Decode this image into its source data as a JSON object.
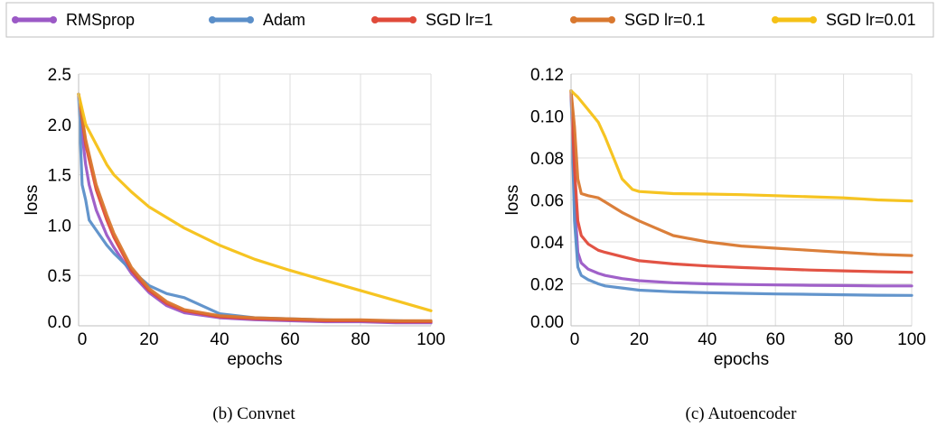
{
  "legend": [
    {
      "label": "RMSprop",
      "color": "#9b59c6"
    },
    {
      "label": "Adam",
      "color": "#5b8fc9"
    },
    {
      "label": "SGD lr=1",
      "color": "#e04a3a"
    },
    {
      "label": "SGD lr=0.1",
      "color": "#d9782f"
    },
    {
      "label": "SGD lr=0.01",
      "color": "#f5c116"
    }
  ],
  "chart_data": [
    {
      "type": "line",
      "caption": "(b) Convnet",
      "xlabel": "epochs",
      "ylabel": "loss",
      "xlim": [
        0,
        100
      ],
      "ylim": [
        0,
        2.5
      ],
      "xticks": [
        "0",
        "20",
        "40",
        "60",
        "80",
        "100"
      ],
      "yticks": [
        "0.0",
        "0.5",
        "1.0",
        "1.5",
        "2.0",
        "2.5"
      ],
      "grid": true,
      "series": [
        {
          "name": "RMSprop",
          "color": "#9b59c6",
          "x": [
            0,
            1,
            2,
            3,
            5,
            8,
            10,
            15,
            20,
            25,
            30,
            40,
            50,
            60,
            70,
            80,
            90,
            100
          ],
          "y": [
            2.3,
            1.9,
            1.6,
            1.4,
            1.15,
            0.9,
            0.78,
            0.52,
            0.33,
            0.2,
            0.13,
            0.08,
            0.06,
            0.05,
            0.04,
            0.04,
            0.03,
            0.03
          ]
        },
        {
          "name": "Adam",
          "color": "#5b8fc9",
          "x": [
            0,
            1,
            2,
            3,
            5,
            8,
            10,
            15,
            20,
            25,
            30,
            35,
            40,
            50,
            60,
            70,
            80,
            90,
            100
          ],
          "y": [
            2.3,
            1.4,
            1.25,
            1.05,
            0.95,
            0.8,
            0.72,
            0.55,
            0.4,
            0.32,
            0.28,
            0.2,
            0.12,
            0.08,
            0.07,
            0.06,
            0.05,
            0.05,
            0.04
          ]
        },
        {
          "name": "SGD lr=1",
          "color": "#e04a3a",
          "x": [
            0,
            2,
            5,
            8,
            10,
            15,
            20,
            25,
            30,
            40,
            50,
            60,
            70,
            80,
            90,
            100
          ],
          "y": [
            2.3,
            1.8,
            1.35,
            1.05,
            0.88,
            0.55,
            0.35,
            0.22,
            0.15,
            0.09,
            0.07,
            0.06,
            0.05,
            0.05,
            0.04,
            0.04
          ]
        },
        {
          "name": "SGD lr=0.1",
          "color": "#d9782f",
          "x": [
            0,
            2,
            5,
            8,
            10,
            15,
            20,
            25,
            30,
            40,
            50,
            60,
            70,
            80,
            90,
            100
          ],
          "y": [
            2.3,
            1.85,
            1.4,
            1.1,
            0.92,
            0.58,
            0.37,
            0.24,
            0.16,
            0.1,
            0.08,
            0.07,
            0.06,
            0.06,
            0.05,
            0.05
          ]
        },
        {
          "name": "SGD lr=0.01",
          "color": "#f5c116",
          "x": [
            0,
            2,
            5,
            8,
            10,
            15,
            20,
            30,
            40,
            50,
            60,
            70,
            80,
            90,
            100
          ],
          "y": [
            2.3,
            2.0,
            1.8,
            1.6,
            1.5,
            1.33,
            1.18,
            0.97,
            0.8,
            0.66,
            0.55,
            0.45,
            0.35,
            0.25,
            0.15
          ]
        }
      ]
    },
    {
      "type": "line",
      "caption": "(c) Autoencoder",
      "xlabel": "epochs",
      "ylabel": "loss",
      "xlim": [
        0,
        100
      ],
      "ylim": [
        0,
        0.12
      ],
      "xticks": [
        "0",
        "20",
        "40",
        "60",
        "80",
        "100"
      ],
      "yticks": [
        "0.00",
        "0.02",
        "0.04",
        "0.06",
        "0.08",
        "0.10",
        "0.12"
      ],
      "grid": true,
      "series": [
        {
          "name": "RMSprop",
          "color": "#9b59c6",
          "x": [
            0,
            1,
            2,
            3,
            5,
            8,
            10,
            15,
            20,
            30,
            40,
            50,
            60,
            70,
            80,
            90,
            100
          ],
          "y": [
            0.112,
            0.06,
            0.035,
            0.03,
            0.027,
            0.025,
            0.024,
            0.0225,
            0.0215,
            0.0205,
            0.02,
            0.0197,
            0.0195,
            0.0193,
            0.0192,
            0.019,
            0.019
          ]
        },
        {
          "name": "Adam",
          "color": "#5b8fc9",
          "x": [
            0,
            1,
            2,
            3,
            5,
            8,
            10,
            15,
            20,
            30,
            40,
            50,
            60,
            70,
            80,
            90,
            100
          ],
          "y": [
            0.112,
            0.05,
            0.028,
            0.024,
            0.022,
            0.02,
            0.019,
            0.018,
            0.017,
            0.0162,
            0.0158,
            0.0155,
            0.0152,
            0.015,
            0.0148,
            0.0146,
            0.0145
          ]
        },
        {
          "name": "SGD lr=1",
          "color": "#e04a3a",
          "x": [
            0,
            1,
            2,
            3,
            5,
            8,
            10,
            15,
            20,
            30,
            40,
            50,
            60,
            70,
            80,
            90,
            100
          ],
          "y": [
            0.112,
            0.075,
            0.05,
            0.043,
            0.039,
            0.036,
            0.035,
            0.033,
            0.031,
            0.0295,
            0.0285,
            0.0278,
            0.0272,
            0.0266,
            0.0262,
            0.0258,
            0.0255
          ]
        },
        {
          "name": "SGD lr=0.1",
          "color": "#d9782f",
          "x": [
            0,
            1,
            2,
            3,
            5,
            8,
            10,
            15,
            20,
            30,
            40,
            50,
            60,
            70,
            80,
            90,
            100
          ],
          "y": [
            0.112,
            0.095,
            0.07,
            0.063,
            0.062,
            0.061,
            0.059,
            0.054,
            0.05,
            0.043,
            0.04,
            0.038,
            0.037,
            0.036,
            0.035,
            0.034,
            0.0335
          ]
        },
        {
          "name": "SGD lr=0.01",
          "color": "#f5c116",
          "x": [
            0,
            2,
            5,
            8,
            10,
            13,
            15,
            18,
            20,
            25,
            30,
            40,
            50,
            60,
            70,
            80,
            90,
            100
          ],
          "y": [
            0.112,
            0.109,
            0.103,
            0.097,
            0.09,
            0.078,
            0.07,
            0.065,
            0.064,
            0.0635,
            0.063,
            0.0628,
            0.0625,
            0.062,
            0.0615,
            0.061,
            0.06,
            0.0595
          ]
        }
      ]
    }
  ]
}
